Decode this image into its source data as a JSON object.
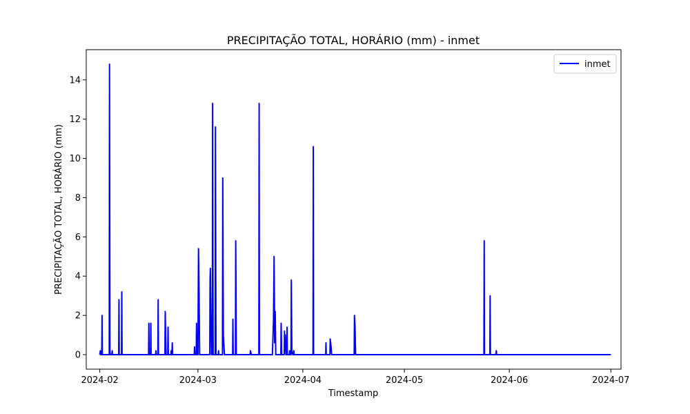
{
  "chart_data": {
    "type": "line",
    "title": "PRECIPITAÇÃO TOTAL, HORÁRIO (mm) - inmet",
    "xlabel": "Timestamp",
    "ylabel": "PRECIPITAÇÃO TOTAL, HORÁRIO (mm)",
    "x_type": "date",
    "xlim": [
      "2024-01-28",
      "2024-07-04"
    ],
    "ylim": [
      -0.74,
      15.54
    ],
    "x_ticks": [
      "2024-02-01",
      "2024-03-01",
      "2024-04-01",
      "2024-05-01",
      "2024-06-01",
      "2024-07-01"
    ],
    "x_tick_labels": [
      "2024-02",
      "2024-03",
      "2024-04",
      "2024-05",
      "2024-06",
      "2024-07"
    ],
    "y_ticks": [
      0,
      2,
      4,
      6,
      8,
      10,
      12,
      14
    ],
    "y_tick_labels": [
      "0",
      "2",
      "4",
      "6",
      "8",
      "10",
      "12",
      "14"
    ],
    "grid": false,
    "legend_position": "top-right",
    "series": [
      {
        "name": "inmet",
        "color": "#0000ff",
        "points": [
          [
            "2024-02-01 00:00",
            0
          ],
          [
            "2024-02-01 04:00",
            0.2
          ],
          [
            "2024-02-01 06:00",
            0
          ],
          [
            "2024-02-01 14:00",
            0
          ],
          [
            "2024-02-01 16:00",
            2.0
          ],
          [
            "2024-02-01 18:00",
            0
          ],
          [
            "2024-02-03 19:00",
            0
          ],
          [
            "2024-02-03 21:00",
            14.8
          ],
          [
            "2024-02-04 00:00",
            0.2
          ],
          [
            "2024-02-04 02:00",
            0
          ],
          [
            "2024-02-04 14:00",
            0
          ],
          [
            "2024-02-04 16:00",
            0.2
          ],
          [
            "2024-02-04 18:00",
            0
          ],
          [
            "2024-02-06 14:00",
            0
          ],
          [
            "2024-02-06 16:00",
            2.8
          ],
          [
            "2024-02-06 18:00",
            0
          ],
          [
            "2024-02-07 10:00",
            0
          ],
          [
            "2024-02-07 12:00",
            3.2
          ],
          [
            "2024-02-07 14:00",
            0
          ],
          [
            "2024-02-15 10:00",
            0
          ],
          [
            "2024-02-15 12:00",
            1.6
          ],
          [
            "2024-02-15 14:00",
            0
          ],
          [
            "2024-02-16 00:00",
            0
          ],
          [
            "2024-02-16 02:00",
            1.6
          ],
          [
            "2024-02-16 04:00",
            0
          ],
          [
            "2024-02-17 12:00",
            0
          ],
          [
            "2024-02-17 14:00",
            0.2
          ],
          [
            "2024-02-17 16:00",
            0
          ],
          [
            "2024-02-18 04:00",
            0
          ],
          [
            "2024-02-18 06:00",
            2.8
          ],
          [
            "2024-02-18 08:00",
            0
          ],
          [
            "2024-02-20 06:00",
            0
          ],
          [
            "2024-02-20 08:00",
            2.2
          ],
          [
            "2024-02-20 12:00",
            0.6
          ],
          [
            "2024-02-20 14:00",
            0
          ],
          [
            "2024-02-21 02:00",
            0
          ],
          [
            "2024-02-21 04:00",
            1.4
          ],
          [
            "2024-02-21 06:00",
            0
          ],
          [
            "2024-02-22 00:00",
            0
          ],
          [
            "2024-02-22 02:00",
            0.2
          ],
          [
            "2024-02-22 04:00",
            0
          ],
          [
            "2024-02-22 08:00",
            0
          ],
          [
            "2024-02-22 10:00",
            0.6
          ],
          [
            "2024-02-22 12:00",
            0
          ],
          [
            "2024-02-28 22:00",
            0
          ],
          [
            "2024-02-29 00:00",
            0.4
          ],
          [
            "2024-02-29 02:00",
            0
          ],
          [
            "2024-02-29 12:00",
            0
          ],
          [
            "2024-02-29 14:00",
            1.6
          ],
          [
            "2024-02-29 16:00",
            0
          ],
          [
            "2024-03-01 00:00",
            0
          ],
          [
            "2024-03-01 04:00",
            5.4
          ],
          [
            "2024-03-01 08:00",
            3.2
          ],
          [
            "2024-03-01 12:00",
            0
          ],
          [
            "2024-03-04 12:00",
            0
          ],
          [
            "2024-03-04 14:00",
            3.8
          ],
          [
            "2024-03-04 16:00",
            4.4
          ],
          [
            "2024-03-04 20:00",
            2.0
          ],
          [
            "2024-03-05 00:00",
            0
          ],
          [
            "2024-03-05 06:00",
            0
          ],
          [
            "2024-03-05 08:00",
            12.8
          ],
          [
            "2024-03-05 12:00",
            0
          ],
          [
            "2024-03-06 02:00",
            0
          ],
          [
            "2024-03-06 04:00",
            11.6
          ],
          [
            "2024-03-06 08:00",
            0
          ],
          [
            "2024-03-07 00:00",
            0
          ],
          [
            "2024-03-07 02:00",
            0.2
          ],
          [
            "2024-03-07 04:00",
            0
          ],
          [
            "2024-03-08 06:00",
            0
          ],
          [
            "2024-03-08 08:00",
            9.0
          ],
          [
            "2024-03-08 12:00",
            1.0
          ],
          [
            "2024-03-08 20:00",
            0
          ],
          [
            "2024-03-11 06:00",
            0
          ],
          [
            "2024-03-11 08:00",
            1.8
          ],
          [
            "2024-03-11 10:00",
            0
          ],
          [
            "2024-03-12 02:00",
            0
          ],
          [
            "2024-03-12 04:00",
            5.8
          ],
          [
            "2024-03-12 08:00",
            0
          ],
          [
            "2024-03-16 10:00",
            0
          ],
          [
            "2024-03-16 12:00",
            0.2
          ],
          [
            "2024-03-16 16:00",
            0.1
          ],
          [
            "2024-03-16 18:00",
            0
          ],
          [
            "2024-03-19 00:00",
            0
          ],
          [
            "2024-03-19 02:00",
            12.8
          ],
          [
            "2024-03-19 04:00",
            0
          ],
          [
            "2024-03-23 00:00",
            0
          ],
          [
            "2024-03-23 02:00",
            0.4
          ],
          [
            "2024-03-23 08:00",
            1.8
          ],
          [
            "2024-03-23 12:00",
            5.0
          ],
          [
            "2024-03-23 16:00",
            0.6
          ],
          [
            "2024-03-23 20:00",
            2.2
          ],
          [
            "2024-03-24 00:00",
            0
          ],
          [
            "2024-03-25 12:00",
            0
          ],
          [
            "2024-03-25 14:00",
            1.6
          ],
          [
            "2024-03-25 18:00",
            0
          ],
          [
            "2024-03-26 12:00",
            0
          ],
          [
            "2024-03-26 14:00",
            1.2
          ],
          [
            "2024-03-26 16:00",
            0.2
          ],
          [
            "2024-03-26 20:00",
            1.0
          ],
          [
            "2024-03-27 00:00",
            0
          ],
          [
            "2024-03-27 06:00",
            0
          ],
          [
            "2024-03-27 08:00",
            1.4
          ],
          [
            "2024-03-27 10:00",
            0
          ],
          [
            "2024-03-28 00:00",
            0
          ],
          [
            "2024-03-28 02:00",
            0.2
          ],
          [
            "2024-03-28 04:00",
            0
          ],
          [
            "2024-03-28 12:00",
            0
          ],
          [
            "2024-03-28 14:00",
            3.8
          ],
          [
            "2024-03-28 18:00",
            0.2
          ],
          [
            "2024-03-29 00:00",
            0
          ],
          [
            "2024-03-29 06:00",
            0
          ],
          [
            "2024-03-29 08:00",
            0.2
          ],
          [
            "2024-03-29 10:00",
            0
          ],
          [
            "2024-04-04 00:00",
            0
          ],
          [
            "2024-04-04 02:00",
            10.6
          ],
          [
            "2024-04-04 04:00",
            0
          ],
          [
            "2024-04-07 18:00",
            0
          ],
          [
            "2024-04-07 20:00",
            0.6
          ],
          [
            "2024-04-07 22:00",
            0
          ],
          [
            "2024-04-09 00:00",
            0
          ],
          [
            "2024-04-09 02:00",
            0.8
          ],
          [
            "2024-04-09 08:00",
            0.4
          ],
          [
            "2024-04-09 12:00",
            0
          ],
          [
            "2024-04-16 04:00",
            0
          ],
          [
            "2024-04-16 06:00",
            2.0
          ],
          [
            "2024-04-16 10:00",
            1.4
          ],
          [
            "2024-04-16 14:00",
            0
          ],
          [
            "2024-05-24 12:00",
            0
          ],
          [
            "2024-05-24 14:00",
            5.8
          ],
          [
            "2024-05-24 16:00",
            0
          ],
          [
            "2024-05-26 06:00",
            0
          ],
          [
            "2024-05-26 08:00",
            3.0
          ],
          [
            "2024-05-26 10:00",
            0
          ],
          [
            "2024-05-28 00:00",
            0
          ],
          [
            "2024-05-28 04:00",
            0.2
          ],
          [
            "2024-05-28 06:00",
            0
          ],
          [
            "2024-07-01 00:00",
            0
          ]
        ]
      }
    ]
  }
}
